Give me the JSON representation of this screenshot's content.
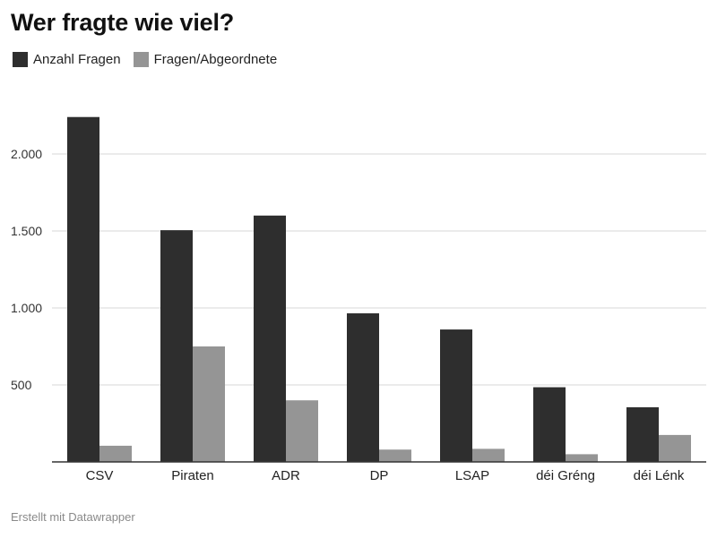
{
  "title": "Wer fragte wie viel?",
  "footer": "Erstellt mit Datawrapper",
  "colors": {
    "series1": "#2e2e2e",
    "series2": "#959595",
    "grid": "#d7d7d7",
    "axis": "#333333"
  },
  "chart_data": {
    "type": "bar",
    "title": "Wer fragte wie viel?",
    "xlabel": "",
    "ylabel": "",
    "ylim": [
      0,
      2300
    ],
    "grid": true,
    "legend_position": "top-left",
    "categories": [
      "CSV",
      "Piraten",
      "ADR",
      "DP",
      "LSAP",
      "déi Gréng",
      "déi Lénk"
    ],
    "yticks": [
      500,
      1000,
      1500,
      2000
    ],
    "ytick_labels": [
      "500",
      "1.000",
      "1.500",
      "2.000"
    ],
    "series": [
      {
        "name": "Anzahl Fragen",
        "values": [
          2240,
          1505,
          1600,
          965,
          860,
          485,
          355
        ]
      },
      {
        "name": "Fragen/Abgeordnete",
        "values": [
          105,
          750,
          400,
          80,
          85,
          50,
          175
        ]
      }
    ]
  }
}
